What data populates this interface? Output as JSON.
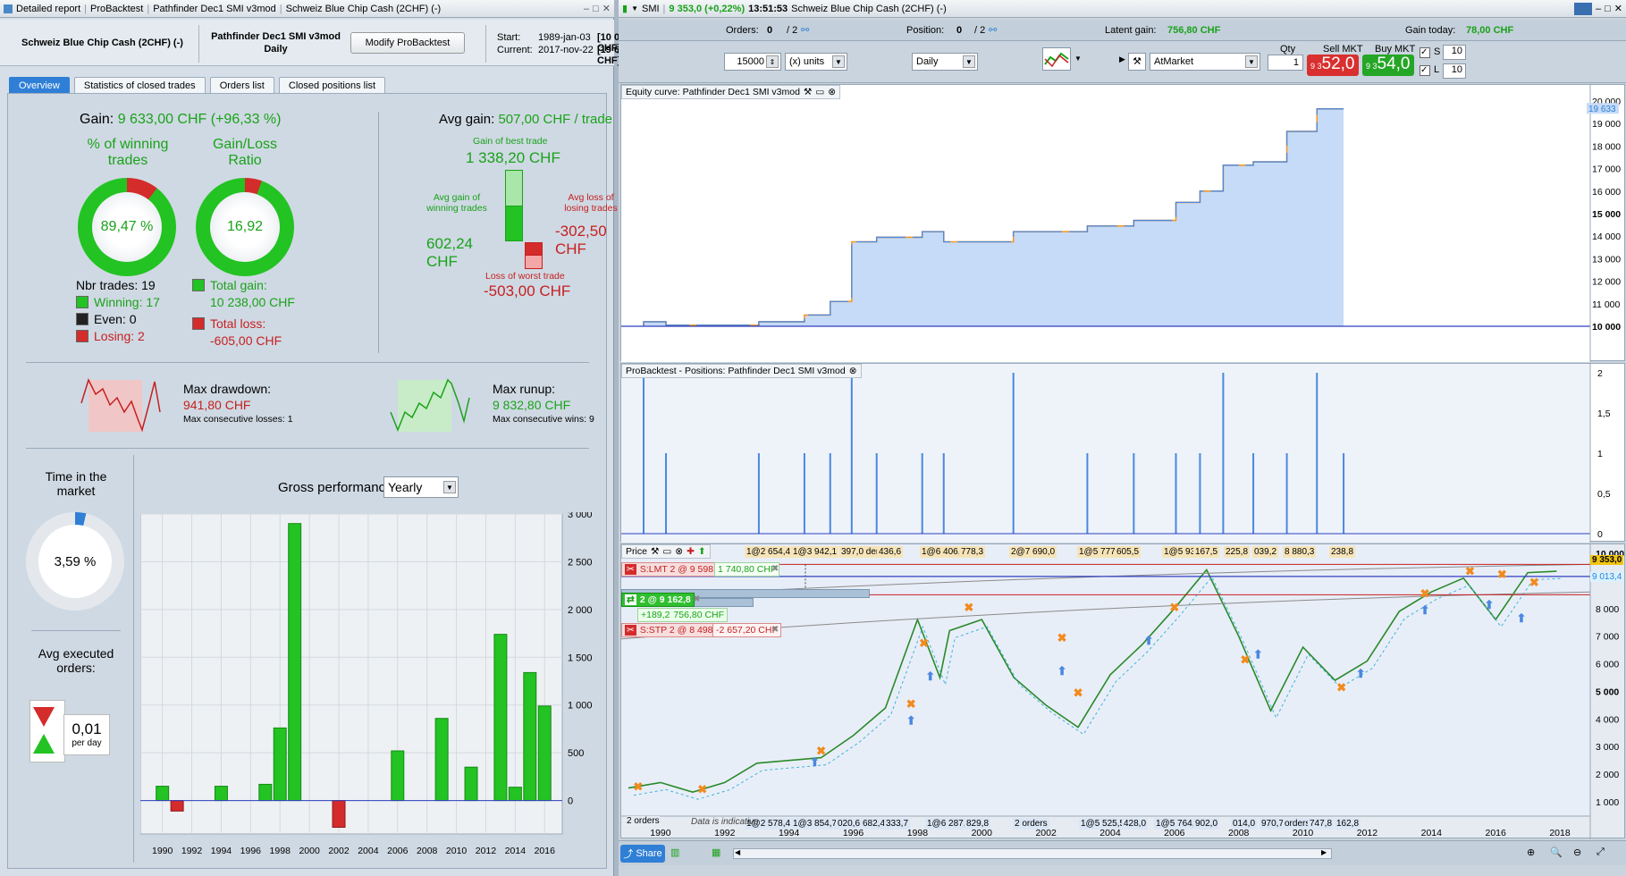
{
  "left_window": {
    "title_items": [
      "Detailed report",
      "ProBacktest",
      "Pathfinder Dec1 SMI v3mod",
      "Schweiz Blue Chip Cash (2CHF) (-)"
    ],
    "instrument": "Schweiz Blue Chip Cash (2CHF) (-)",
    "strategy_name": "Pathfinder Dec1 SMI v3mod",
    "timeframe": "Daily",
    "modify_button": "Modify ProBacktest",
    "start_label": "Start:",
    "start_date": "1989-jan-03",
    "start_value": "[10 000,00 CHF]",
    "current_label": "Current:",
    "current_date": "2017-nov-22",
    "current_value": "[19 633,00 CHF]",
    "tabs": [
      "Overview",
      "Statistics of closed trades",
      "Orders list",
      "Closed positions list"
    ],
    "gain_label": "Gain:",
    "gain_value": "9 633,00 CHF (+96,33 %)",
    "pct_winning_label": "% of winning trades",
    "pct_winning_value": "89,47 %",
    "gainloss_label": "Gain/Loss Ratio",
    "gainloss_value": "16,92",
    "nbr_trades": "Nbr trades: 19",
    "winning": "Winning: 17",
    "even": "Even: 0",
    "losing": "Losing: 2",
    "total_gain_label": "Total gain:",
    "total_gain_value": "10 238,00 CHF",
    "total_loss_label": "Total loss:",
    "total_loss_value": "-605,00 CHF",
    "avg_gain_label": "Avg gain:",
    "avg_gain_value": "507,00 CHF / trade",
    "best_trade_label": "Gain of best trade",
    "best_trade_value": "1 338,20 CHF",
    "avg_gain_winning_label": "Avg gain of winning trades",
    "avg_gain_winning_value": "602,24 CHF",
    "avg_loss_label": "Avg loss of losing trades",
    "avg_loss_value": "-302,50 CHF",
    "worst_trade_label": "Loss of worst trade",
    "worst_trade_value": "-503,00 CHF",
    "max_drawdown_label": "Max drawdown:",
    "max_drawdown_value": "941,80 CHF",
    "max_consec_losses": "Max consecutive losses: 1",
    "max_runup_label": "Max runup:",
    "max_runup_value": "9 832,80 CHF",
    "max_consec_wins": "Max consecutive wins: 9",
    "time_in_market_label": "Time in the market",
    "time_in_market_value": "3,59 %",
    "avg_exec_label": "Avg executed orders:",
    "avg_exec_value": "0,01",
    "avg_exec_unit": "per day",
    "gross_perf_label": "Gross performance",
    "gross_perf_select": "Yearly",
    "colors": {
      "win": "#22c322",
      "loss": "#d42b2b",
      "accent": "#2f7fd6"
    }
  },
  "chart_data": [
    {
      "type": "bar",
      "title": "Gross performance",
      "categories": [
        "1990",
        "1991",
        "1994",
        "1997",
        "1998",
        "1999",
        "2002",
        "2006",
        "2009",
        "2011",
        "2013",
        "2014",
        "2015",
        "2016"
      ],
      "values": [
        150,
        -110,
        150,
        170,
        760,
        2900,
        -280,
        520,
        860,
        350,
        1740,
        140,
        1340,
        990
      ],
      "x_tick_labels": [
        "1990",
        "1992",
        "1994",
        "1996",
        "1998",
        "2000",
        "2002",
        "2004",
        "2006",
        "2008",
        "2010",
        "2012",
        "2014",
        "2016"
      ],
      "y_tick_labels": [
        "3 000",
        "2 500",
        "2 000",
        "1 500",
        "1 000",
        "500",
        "0"
      ],
      "ylim": [
        -350,
        3000
      ]
    },
    {
      "type": "line",
      "title": "Equity curve: Pathfinder Dec1 SMI v3mod",
      "y_tick_labels": [
        "20 000",
        "19 000",
        "18 000",
        "17 000",
        "16 000",
        "15 000",
        "14 000",
        "13 000",
        "12 000",
        "11 000",
        "10 000"
      ],
      "last_value": "19 633",
      "ylim": [
        10000,
        20000
      ]
    },
    {
      "type": "bar",
      "title": "ProBacktest - Positions: Pathfinder Dec1 SMI v3mod",
      "y_tick_labels": [
        "2",
        "1,5",
        "1",
        "0,5",
        "0"
      ],
      "ylim": [
        0,
        2
      ]
    },
    {
      "type": "line",
      "title": "Price",
      "x_tick_labels": [
        "1990",
        "1992",
        "1994",
        "1996",
        "1998",
        "2000",
        "2002",
        "2004",
        "2006",
        "2008",
        "2010",
        "2012",
        "2014",
        "2016",
        "2018"
      ],
      "y_tick_labels": [
        "10 000",
        "9 000",
        "8 000",
        "7 000",
        "6 000",
        "5 000",
        "4 000",
        "3 000",
        "2 000",
        "1 000"
      ],
      "ylim": [
        1000,
        10000
      ]
    }
  ],
  "right_window": {
    "title_symbol": "SMI",
    "title_price": "9 353,0 (+0,22%)",
    "title_time": "13:51:53",
    "title_instrument": "Schweiz Blue Chip Cash (2CHF) (-)",
    "orders_label": "Orders:",
    "orders_value": "0",
    "orders_total": "/ 2",
    "position_label": "Position:",
    "position_value": "0",
    "position_total": "/ 2",
    "latent_gain_label": "Latent gain:",
    "latent_gain_value": "756,80 CHF",
    "gain_today_label": "Gain today:",
    "gain_today_value": "78,00 CHF",
    "qty_units": "15000",
    "units_select": "(x) units",
    "period_select": "Daily",
    "order_type": "AtMarket",
    "qty_label": "Qty",
    "qty_value": "1",
    "sell_label": "Sell MKT",
    "sell_small": "9 3",
    "sell_big": "52,0",
    "buy_label": "Buy MKT",
    "buy_small": "9 3",
    "buy_big": "54,0",
    "s_label": "S",
    "s_value": "10",
    "l_label": "L",
    "l_value": "10",
    "price_panel_title": "Price",
    "order_lmt": "S:LMT 2 @ 9 598,0",
    "order_lmt_gain": "1 740,80 CHF",
    "position_box": "2 @ 9 162,8",
    "position_gain1": "+189,2",
    "position_gain2": "756,80 CHF",
    "order_stp": "S:STP 2 @ 8 498,5",
    "order_stp_loss": "-2 657,20 CHF",
    "price_current": "9 353,0",
    "price_b": "9 013,4",
    "top_chips": [
      "1@2 654,4",
      "1@3 942,1",
      "397,0 ders",
      "436,6",
      "1@6 406,0",
      "778,3",
      "2@7 690,0",
      "1@5 777,5",
      "605,5",
      "1@5 938,5",
      "167,5",
      "225,8",
      "039,2",
      "8 880,3",
      "238,8"
    ],
    "bottom_chips": [
      "1@2 578,4",
      "1@3 854,7",
      "020,6",
      "682,4",
      "333,7",
      "1@6 287,3",
      "829,8",
      "2 orders",
      "1@5 525,5",
      "428,0",
      "1@5 764,5",
      "902,0",
      "014,0",
      "970,7",
      "orders",
      "747,8",
      "162,8"
    ],
    "bottom_left_chip": "2 orders",
    "watermark": "Data is indicative",
    "share_label": "Share"
  }
}
